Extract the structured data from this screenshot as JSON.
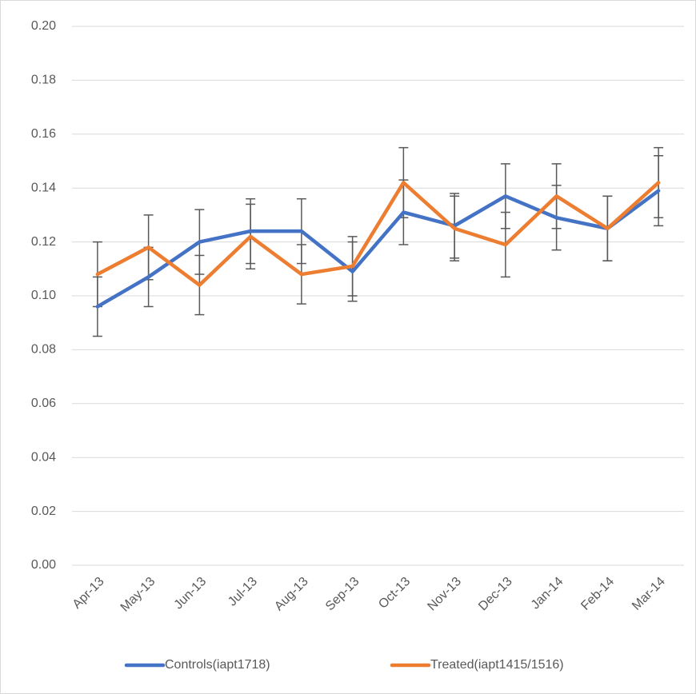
{
  "chart_data": {
    "type": "line",
    "categories": [
      "Apr-13",
      "May-13",
      "Jun-13",
      "Jul-13",
      "Aug-13",
      "Sep-13",
      "Oct-13",
      "Nov-13",
      "Dec-13",
      "Jan-14",
      "Feb-14",
      "Mar-14"
    ],
    "series": [
      {
        "name": "Controls(iapt1718)",
        "color": "#4472c4",
        "values": [
          0.096,
          0.107,
          0.12,
          0.124,
          0.124,
          0.109,
          0.131,
          0.126,
          0.137,
          0.129,
          0.125,
          0.139
        ],
        "errors": [
          0.011,
          0.011,
          0.012,
          0.012,
          0.012,
          0.011,
          0.012,
          0.012,
          0.012,
          0.012,
          0.012,
          0.013
        ]
      },
      {
        "name": "Treated(iapt1415/1516)",
        "color": "#ed7d31",
        "values": [
          0.108,
          0.118,
          0.104,
          0.122,
          0.108,
          0.111,
          0.142,
          0.125,
          0.119,
          0.137,
          0.125,
          0.142
        ],
        "errors": [
          0.012,
          0.012,
          0.011,
          0.012,
          0.011,
          0.011,
          0.013,
          0.012,
          0.012,
          0.012,
          0.012,
          0.013
        ]
      }
    ],
    "ylim": [
      0,
      0.2
    ],
    "yticks": [
      {
        "value": 0,
        "label": "0.00"
      },
      0.02,
      0.04,
      0.06,
      0.08,
      {
        "value": 0.1,
        "label": "0.10"
      },
      0.12,
      0.14,
      0.16,
      0.18,
      {
        "value": 0.2,
        "label": "0.20"
      }
    ],
    "grid": true,
    "legend": "bottom",
    "error_bar_color": "#595959"
  }
}
